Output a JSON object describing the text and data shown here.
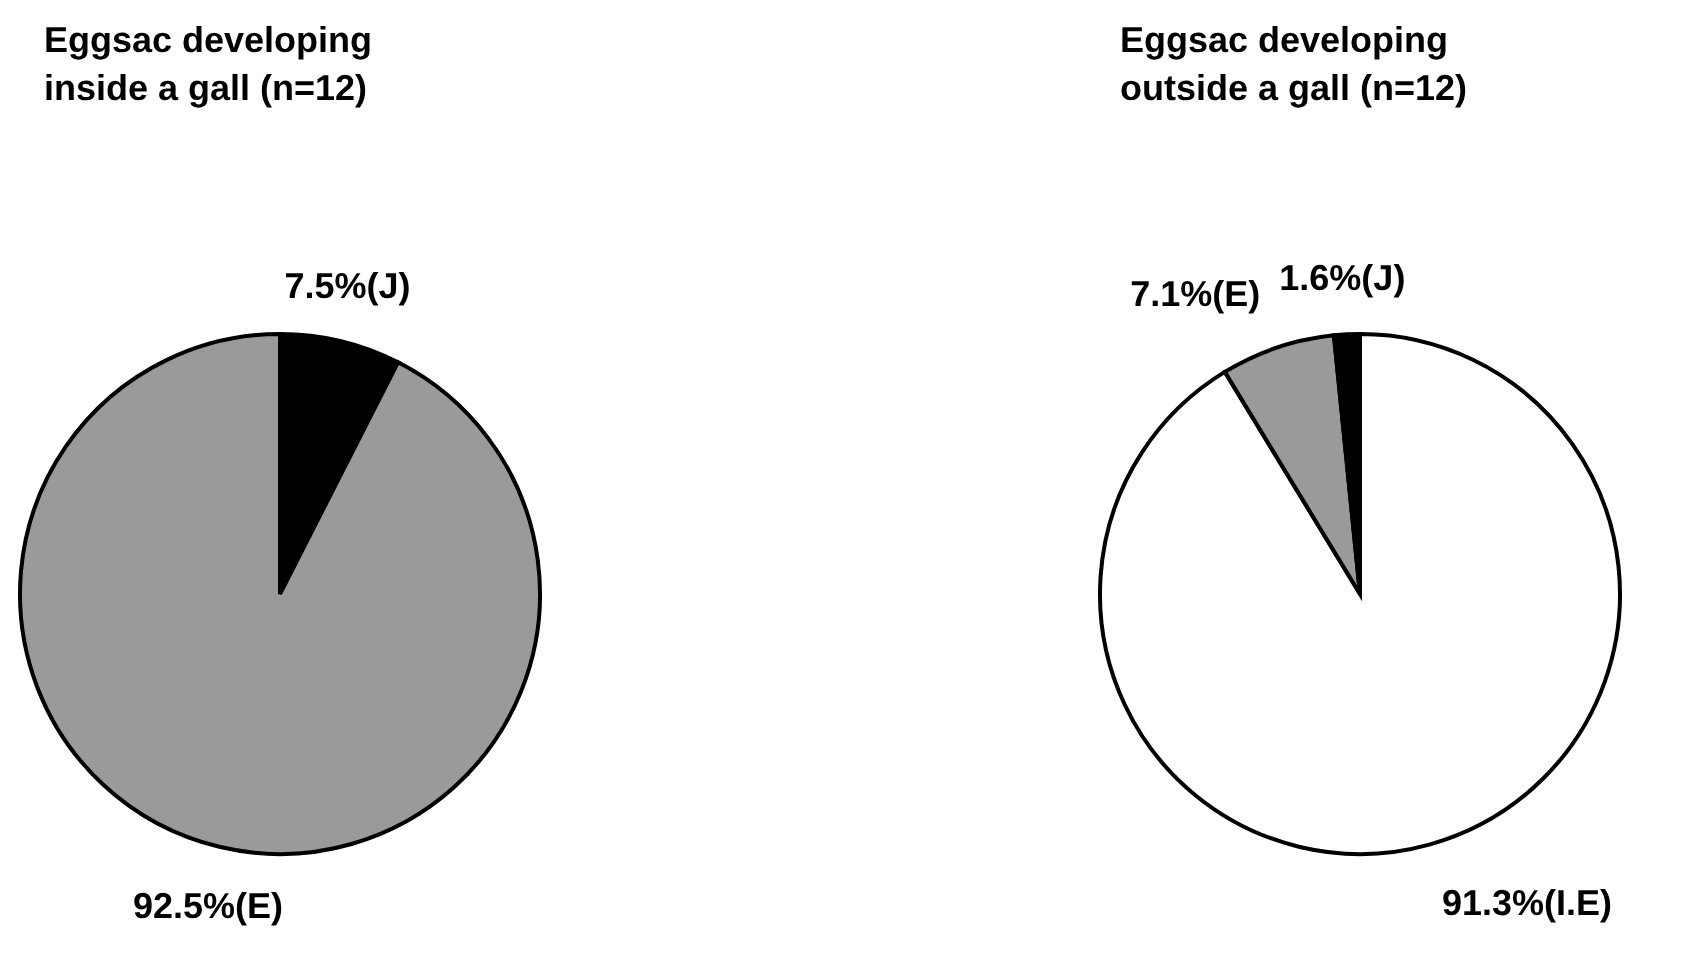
{
  "chart_data": [
    {
      "type": "pie",
      "title": "Eggsac developing\ninside a gall (n=12)",
      "categories": [
        "7.5%(J)",
        "92.5%(E)"
      ],
      "values": [
        7.5,
        92.5
      ],
      "colors": [
        "#000000",
        "#9a9a9a"
      ]
    },
    {
      "type": "pie",
      "title": "Eggsac developing\noutside a gall (n=12)",
      "categories": [
        "91.3%(I.E)",
        "7.1%(E)",
        "1.6%(J)"
      ],
      "values": [
        91.3,
        7.1,
        1.6
      ],
      "colors": [
        "#ffffff",
        "#9a9a9a",
        "#000000"
      ]
    }
  ]
}
